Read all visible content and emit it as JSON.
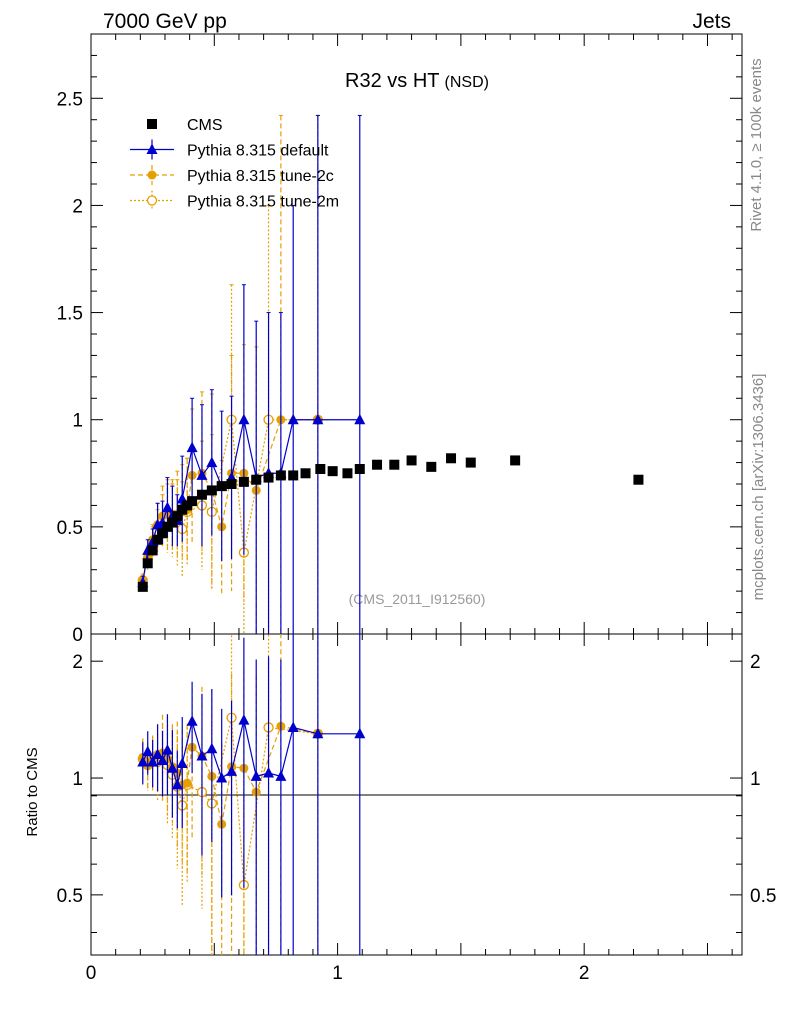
{
  "header": {
    "left": "7000 GeV pp",
    "right": "Jets"
  },
  "side": {
    "rivet": "Rivet 4.1.0, ≥ 100k events",
    "source": "mcplots.cern.ch [arXiv:1306.3436]"
  },
  "chart_data": {
    "type": "scatter",
    "title": "R32 vs HT",
    "title_suffix": "(NSD)",
    "watermark": "(CMS_2011_I912560)",
    "xlim": [
      0,
      2.64
    ],
    "ylim": [
      0,
      2.8
    ],
    "ratio_ylim": [
      0.35,
      2.35
    ],
    "ratio_ylabel": "Ratio to CMS",
    "x_ticks": [
      "0",
      "1",
      "2"
    ],
    "y_ticks": [
      "0",
      "0.5",
      "1",
      "1.5",
      "2",
      "2.5"
    ],
    "ratio_y_ticks": [
      "0.5",
      "1",
      "2"
    ],
    "ratio_right_ticks": [
      "0.5",
      "1",
      "2"
    ],
    "legend_position": "top-left",
    "series": [
      {
        "name": "CMS",
        "color": "#000000",
        "marker": "square",
        "x": [
          0.21,
          0.23,
          0.25,
          0.27,
          0.29,
          0.31,
          0.33,
          0.35,
          0.37,
          0.39,
          0.41,
          0.45,
          0.49,
          0.53,
          0.57,
          0.62,
          0.67,
          0.72,
          0.77,
          0.82,
          0.87,
          0.93,
          0.98,
          1.04,
          1.09,
          1.16,
          1.23,
          1.3,
          1.38,
          1.46,
          1.54,
          1.72,
          2.22
        ],
        "y": [
          0.22,
          0.33,
          0.39,
          0.44,
          0.47,
          0.5,
          0.52,
          0.55,
          0.58,
          0.6,
          0.62,
          0.65,
          0.67,
          0.69,
          0.7,
          0.71,
          0.72,
          0.73,
          0.74,
          0.74,
          0.75,
          0.77,
          0.76,
          0.75,
          0.77,
          0.79,
          0.79,
          0.81,
          0.78,
          0.82,
          0.8,
          0.81,
          0.72
        ]
      },
      {
        "name": "Pythia 8.315 default",
        "color": "#0000cc",
        "marker": "triangle",
        "linestyle": "solid",
        "x": [
          0.21,
          0.23,
          0.25,
          0.27,
          0.29,
          0.31,
          0.33,
          0.35,
          0.37,
          0.41,
          0.45,
          0.49,
          0.53,
          0.57,
          0.62,
          0.67,
          0.72,
          0.77,
          0.82,
          0.92,
          1.09
        ],
        "y": [
          0.24,
          0.39,
          0.43,
          0.51,
          0.52,
          0.59,
          0.55,
          0.53,
          0.63,
          0.87,
          0.74,
          0.8,
          0.69,
          0.73,
          1.0,
          0.73,
          0.75,
          0.75,
          1.0,
          1.0,
          1.0
        ],
        "err": [
          0.03,
          0.05,
          0.06,
          0.1,
          0.1,
          0.14,
          0.14,
          0.12,
          0.2,
          0.23,
          0.33,
          0.34,
          0.35,
          0.38,
          0.63,
          0.73,
          0.75,
          0.75,
          1.0,
          1.42,
          1.42
        ],
        "ratio": [
          1.1,
          1.17,
          1.1,
          1.15,
          1.11,
          1.18,
          1.06,
          0.96,
          1.09,
          1.4,
          1.14,
          1.19,
          1.0,
          1.04,
          1.41,
          1.01,
          1.03,
          1.01,
          1.35,
          1.3,
          1.3
        ]
      },
      {
        "name": "Pythia 8.315 tune-2c",
        "color": "#e69f00",
        "marker": "circle",
        "linestyle": "dashed",
        "x": [
          0.21,
          0.23,
          0.25,
          0.27,
          0.29,
          0.31,
          0.33,
          0.35,
          0.37,
          0.39,
          0.41,
          0.45,
          0.49,
          0.53,
          0.57,
          0.62,
          0.67,
          0.77,
          0.92
        ],
        "y": [
          0.25,
          0.36,
          0.44,
          0.51,
          0.55,
          0.56,
          0.56,
          0.56,
          0.57,
          0.58,
          0.74,
          0.75,
          0.67,
          0.5,
          0.75,
          0.75,
          0.67,
          1.0,
          1.0
        ],
        "err": [
          0.03,
          0.05,
          0.07,
          0.1,
          0.14,
          0.16,
          0.16,
          0.2,
          0.22,
          0.24,
          0.31,
          0.38,
          0.45,
          0.31,
          0.55,
          0.6,
          0.67,
          1.42,
          1.42
        ],
        "ratio": [
          1.13,
          1.08,
          1.11,
          1.15,
          1.16,
          1.12,
          1.07,
          1.03,
          0.96,
          0.97,
          1.2,
          1.14,
          1.01,
          0.76,
          1.07,
          1.06,
          0.92,
          1.36,
          1.3
        ]
      },
      {
        "name": "Pythia 8.315 tune-2m",
        "color": "#e69f00",
        "marker": "circle-open",
        "linestyle": "dotted",
        "x": [
          0.21,
          0.23,
          0.25,
          0.27,
          0.29,
          0.31,
          0.33,
          0.35,
          0.37,
          0.39,
          0.45,
          0.49,
          0.57,
          0.62,
          0.72,
          0.92
        ],
        "y": [
          0.25,
          0.35,
          0.43,
          0.48,
          0.53,
          0.54,
          0.53,
          0.52,
          0.49,
          0.57,
          0.6,
          0.57,
          1.0,
          0.38,
          1.0,
          1.0
        ],
        "err": [
          0.03,
          0.05,
          0.07,
          0.1,
          0.12,
          0.16,
          0.17,
          0.2,
          0.22,
          0.25,
          0.3,
          0.36,
          0.63,
          0.38,
          1.0,
          1.42
        ],
        "ratio": [
          1.12,
          1.08,
          1.1,
          1.1,
          1.13,
          1.08,
          1.02,
          0.95,
          0.85,
          0.96,
          0.92,
          0.86,
          1.43,
          0.53,
          1.35,
          1.3
        ]
      }
    ]
  }
}
